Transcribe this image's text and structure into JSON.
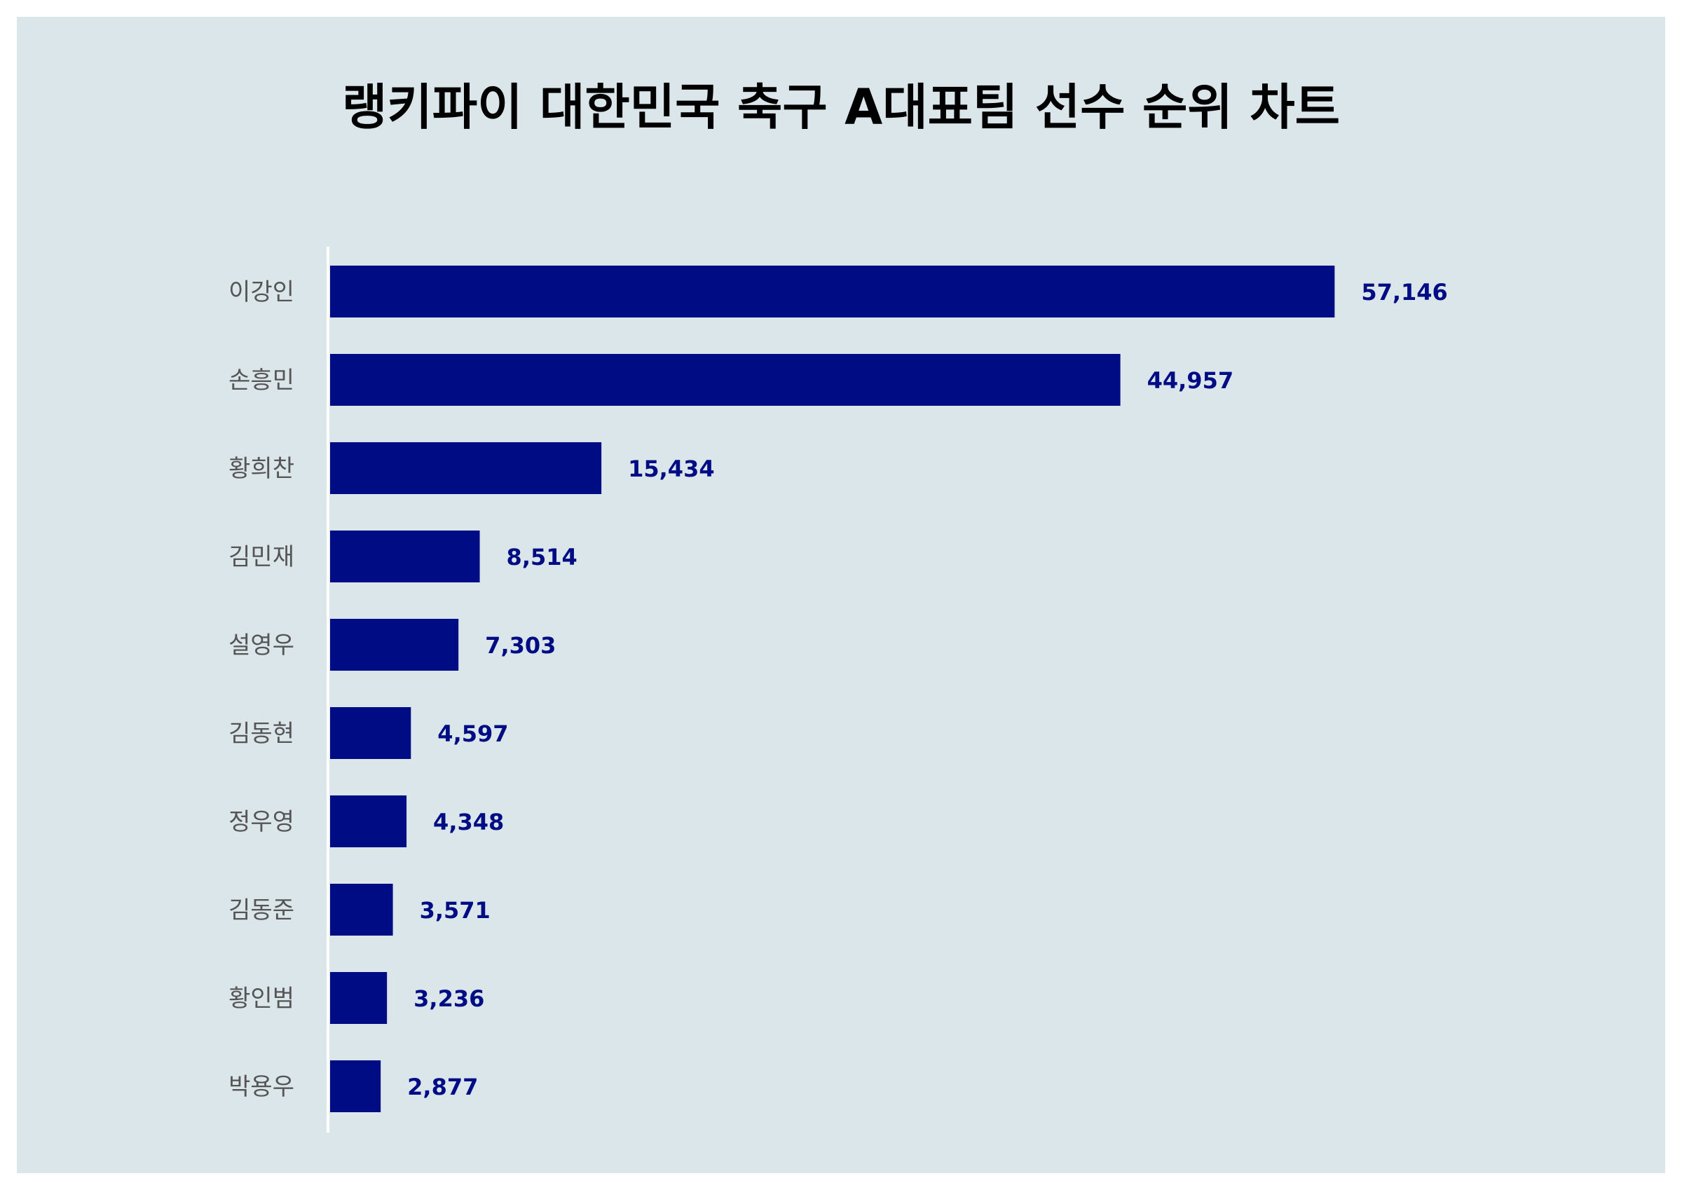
{
  "chart_data": {
    "type": "bar",
    "orientation": "horizontal",
    "title": "랭키파이 대한민국 축구 A대표팀 선수 순위 차트",
    "categories": [
      "이강인",
      "손흥민",
      "황희찬",
      "김민재",
      "설영우",
      "김동현",
      "정우영",
      "김동준",
      "황인범",
      "박용우"
    ],
    "values": [
      57146,
      44957,
      15434,
      8514,
      7303,
      4597,
      4348,
      3571,
      3236,
      2877
    ],
    "value_labels": [
      "57,146",
      "44,957",
      "15,434",
      "8,514",
      "7,303",
      "4,597",
      "4,348",
      "3,571",
      "3,236",
      "2,877"
    ],
    "xlim": [
      0,
      61000
    ],
    "grid": false,
    "bar_color": "#000c84",
    "label_color": "#000c84",
    "category_color": "#555555",
    "background_color": "#dbe6eb"
  }
}
